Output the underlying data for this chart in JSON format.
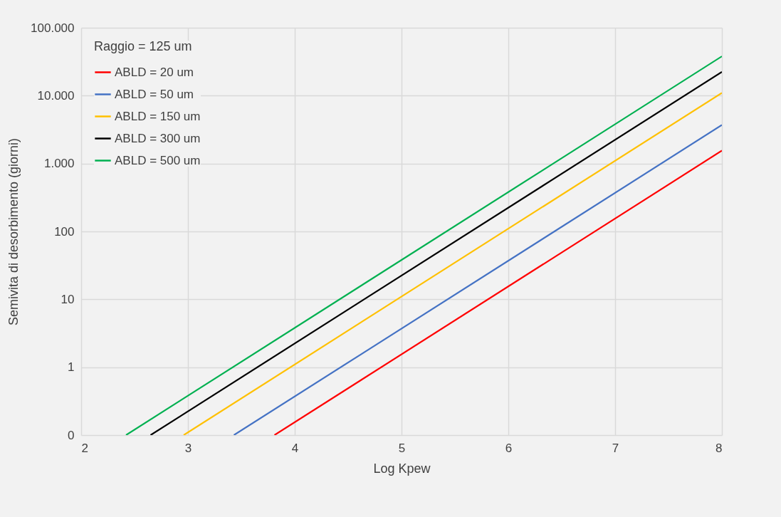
{
  "chart_data": {
    "type": "line",
    "xlabel": "Log Kpew",
    "ylabel": "Semivita di desorbimento  (giorni)",
    "legend_title": "Raggio = 125 um",
    "log": "y",
    "grid": true,
    "legend": "top left",
    "xlim": [
      2,
      8
    ],
    "xticks": [
      2,
      3,
      4,
      5,
      6,
      7,
      8
    ],
    "ylim": [
      0.1,
      100000
    ],
    "yticks": [
      {
        "value": 0.1,
        "label": "0"
      },
      1,
      10,
      100,
      {
        "value": 1000,
        "label": "1.000"
      },
      {
        "value": 10000,
        "label": "10.000"
      },
      {
        "value": 100000,
        "label": "100.000"
      }
    ],
    "series": [
      {
        "name": "ABLD = 20 um",
        "color": "#ff0000",
        "x": [
          3.81,
          8
        ],
        "values": [
          0.1,
          1550
        ]
      },
      {
        "name": "ABLD = 50 um",
        "color": "#4472c4",
        "x": [
          3.43,
          8
        ],
        "values": [
          0.1,
          3700
        ]
      },
      {
        "name": "ABLD = 150 um",
        "color": "#ffc000",
        "x": [
          2.96,
          8
        ],
        "values": [
          0.1,
          11000
        ]
      },
      {
        "name": "ABLD = 300 um",
        "color": "#000000",
        "x": [
          2.65,
          8
        ],
        "values": [
          0.1,
          22400
        ]
      },
      {
        "name": "ABLD = 500 um",
        "color": "#00b050",
        "x": [
          2.42,
          8
        ],
        "values": [
          0.1,
          38000
        ]
      }
    ]
  }
}
